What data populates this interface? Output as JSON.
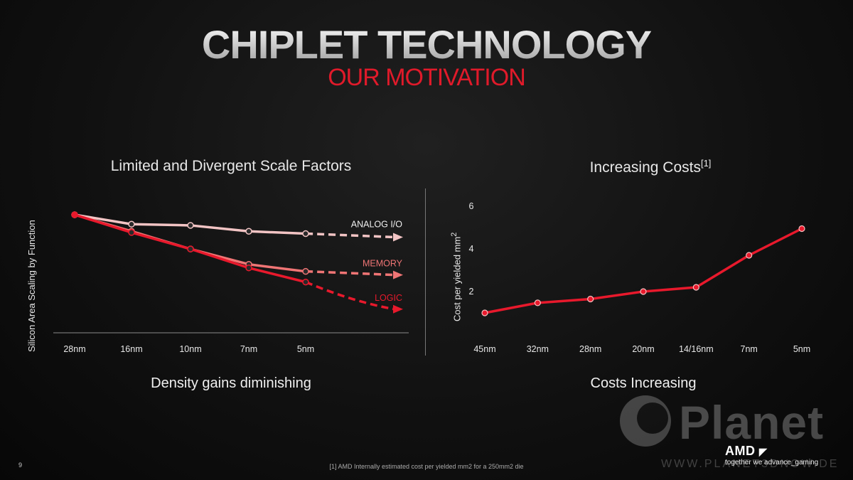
{
  "slide": {
    "title": "CHIPLET TECHNOLOGY",
    "subtitle": "OUR MOTIVATION",
    "page_number": "9",
    "footnote": "[1] AMD Internally estimated cost per yielded mm2 for a 250mm2 die",
    "brand": "AMD",
    "tagline": "together we advance_gaming",
    "watermark": "Planet",
    "watermark_url": "WWW.PLANET3DNOW.DE"
  },
  "chart_data": [
    {
      "type": "line",
      "title": "Limited and Divergent Scale Factors",
      "ylabel": "Silicon Area Scaling by Function",
      "caption": "Density gains diminishing",
      "categories": [
        "28nm",
        "16nm",
        "10nm",
        "7nm",
        "5nm"
      ],
      "series": [
        {
          "name": "ANALOG I/O",
          "color": "#f2c4c4",
          "values": [
            1.0,
            0.92,
            0.91,
            0.86,
            0.84
          ],
          "projection": 0.81
        },
        {
          "name": "MEMORY",
          "color": "#f07575",
          "values": [
            1.0,
            0.86,
            0.71,
            0.58,
            0.52
          ],
          "projection": 0.49
        },
        {
          "name": "LOGIC",
          "color": "#e8192c",
          "values": [
            1.0,
            0.85,
            0.71,
            0.55,
            0.43
          ],
          "projection": 0.2
        }
      ]
    },
    {
      "type": "line",
      "title": "Increasing Costs",
      "title_sup": "[1]",
      "ylabel": "Cost per yielded mm",
      "ylabel_sup": "2",
      "caption": "Costs Increasing",
      "categories": [
        "45nm",
        "32nm",
        "28nm",
        "20nm",
        "14/16nm",
        "7nm",
        "5nm"
      ],
      "yticks": [
        2,
        4,
        6
      ],
      "ylim": [
        0,
        6.5
      ],
      "series": [
        {
          "name": "",
          "color": "#e8192c",
          "values": [
            1.0,
            1.47,
            1.65,
            2.0,
            2.2,
            3.7,
            4.95
          ]
        }
      ]
    }
  ]
}
